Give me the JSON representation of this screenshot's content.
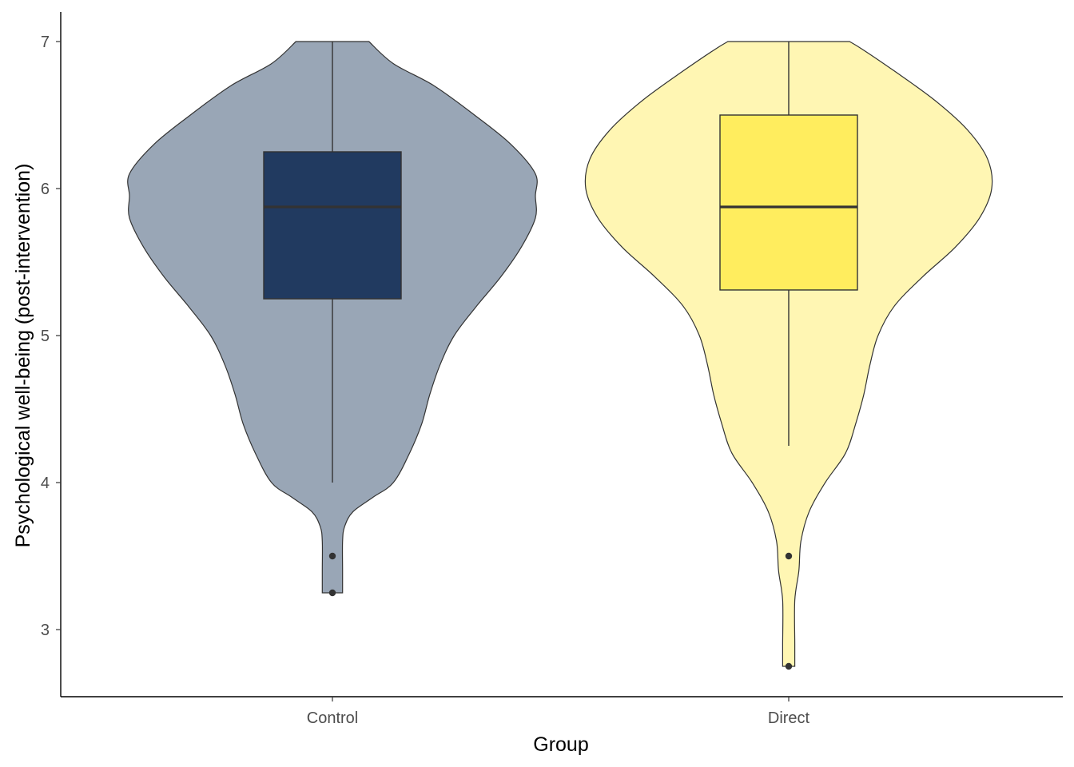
{
  "chart_data": {
    "type": "violin",
    "xlabel": "Group",
    "ylabel": "Psychological well-being (post-intervention)",
    "categories": [
      "Control",
      "Direct"
    ],
    "ylim": [
      2.55,
      7.1
    ],
    "yticks": [
      3,
      4,
      5,
      6,
      7
    ],
    "grid": false,
    "legend": "none",
    "series": [
      {
        "name": "Control",
        "violin_color": "#99a6b6",
        "box_color": "#213a60",
        "density": [
          [
            3.25,
            0.05
          ],
          [
            3.4,
            0.05
          ],
          [
            3.6,
            0.05
          ],
          [
            3.7,
            0.06
          ],
          [
            3.8,
            0.1
          ],
          [
            3.9,
            0.2
          ],
          [
            4.0,
            0.3
          ],
          [
            4.2,
            0.38
          ],
          [
            4.4,
            0.44
          ],
          [
            4.6,
            0.48
          ],
          [
            4.8,
            0.53
          ],
          [
            5.0,
            0.6
          ],
          [
            5.2,
            0.71
          ],
          [
            5.4,
            0.83
          ],
          [
            5.6,
            0.93
          ],
          [
            5.8,
            1.0
          ],
          [
            5.95,
            1.0
          ],
          [
            6.1,
            1.0
          ],
          [
            6.3,
            0.88
          ],
          [
            6.5,
            0.7
          ],
          [
            6.7,
            0.5
          ],
          [
            6.85,
            0.3
          ],
          [
            7.0,
            0.18
          ]
        ],
        "box": {
          "q1": 5.25,
          "median": 5.875,
          "q3": 6.25,
          "whisker_low": 4.0,
          "whisker_high": 7.0
        },
        "outliers": [
          3.5,
          3.25
        ]
      },
      {
        "name": "Direct",
        "violin_color": "#fff6b3",
        "box_color": "#ffed5e",
        "density": [
          [
            2.75,
            0.03
          ],
          [
            2.9,
            0.03
          ],
          [
            3.2,
            0.03
          ],
          [
            3.4,
            0.05
          ],
          [
            3.6,
            0.06
          ],
          [
            3.8,
            0.1
          ],
          [
            4.0,
            0.18
          ],
          [
            4.2,
            0.28
          ],
          [
            4.4,
            0.33
          ],
          [
            4.6,
            0.37
          ],
          [
            4.8,
            0.4
          ],
          [
            5.0,
            0.44
          ],
          [
            5.2,
            0.52
          ],
          [
            5.4,
            0.66
          ],
          [
            5.6,
            0.82
          ],
          [
            5.8,
            0.94
          ],
          [
            6.0,
            1.0
          ],
          [
            6.2,
            0.98
          ],
          [
            6.4,
            0.88
          ],
          [
            6.6,
            0.72
          ],
          [
            6.8,
            0.52
          ],
          [
            6.95,
            0.36
          ],
          [
            7.0,
            0.3
          ]
        ],
        "box": {
          "q1": 5.31,
          "median": 5.875,
          "q3": 6.5,
          "whisker_low": 4.25,
          "whisker_high": 7.0
        },
        "outliers": [
          3.5,
          2.75
        ]
      }
    ]
  }
}
